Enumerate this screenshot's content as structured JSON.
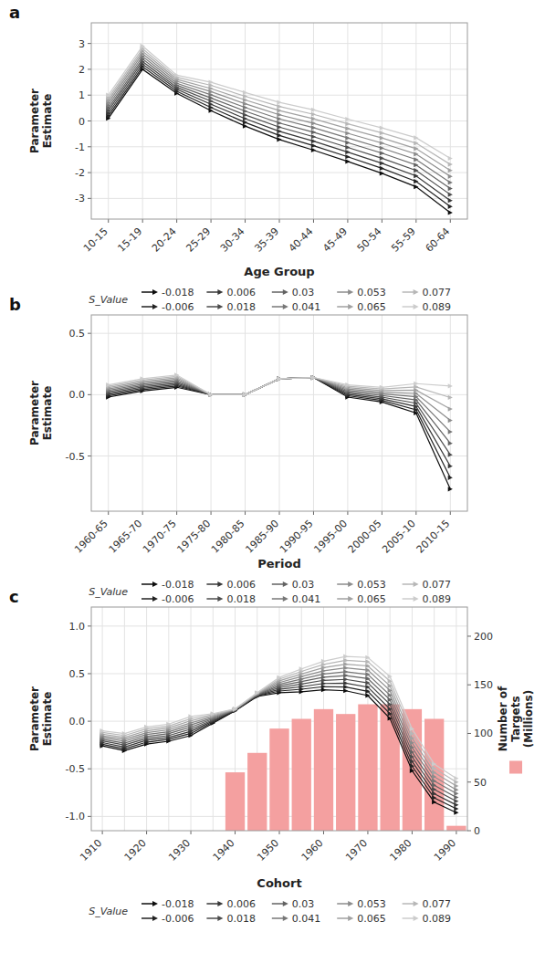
{
  "chart_data": [
    {
      "type": "line",
      "title": "a",
      "xlabel": "Age Group",
      "ylabel": "Parameter\nEstimate",
      "categories": [
        "10-15",
        "15-19",
        "20-24",
        "25-29",
        "30-34",
        "35-39",
        "40-44",
        "45-49",
        "50-54",
        "55-59",
        "60-64"
      ],
      "ylim": [
        -3.8,
        3.8
      ],
      "yticks": [
        -3,
        -2,
        -1,
        0,
        1,
        2,
        3
      ],
      "grid": true,
      "legend": "bottom",
      "legend_title": "S_Value",
      "series": [
        {
          "name": "-0.018",
          "color": "#0d0d0d",
          "marker": "triangle-right",
          "values": [
            0.1,
            2,
            1.07,
            0.4,
            -0.2,
            -0.72,
            -1.13,
            -1.57,
            -2.03,
            -2.55,
            -3.55
          ]
        },
        {
          "name": "-0.006",
          "color": "#222222",
          "marker": "triangle-right",
          "values": [
            0.2,
            2.1,
            1.1478,
            0.5222,
            -0.0556,
            -0.56,
            -0.9567,
            -1.3878,
            -1.8344,
            -2.3389,
            -3.3167
          ]
        },
        {
          "name": "0.006",
          "color": "#373737",
          "marker": "triangle-right",
          "values": [
            0.3,
            2.2,
            1.2256,
            0.6444,
            0.0889,
            -0.4,
            -0.7833,
            -1.2056,
            -1.6389,
            -2.1278,
            -3.0833
          ]
        },
        {
          "name": "0.018",
          "color": "#4c4c4c",
          "marker": "triangle-right",
          "values": [
            0.4,
            2.3,
            1.3033,
            0.7667,
            0.2333,
            -0.24,
            -0.61,
            -1.0233,
            -1.4433,
            -1.9167,
            -2.85
          ]
        },
        {
          "name": "0.03",
          "color": "#626262",
          "marker": "triangle-right",
          "values": [
            0.5,
            2.4,
            1.3811,
            0.8889,
            0.3778,
            -0.08,
            -0.4367,
            -0.8411,
            -1.2478,
            -1.7056,
            -2.6167
          ]
        },
        {
          "name": "0.041",
          "color": "#777777",
          "marker": "triangle-right",
          "values": [
            0.6,
            2.5,
            1.4589,
            1.0111,
            0.5222,
            0.08,
            -0.2633,
            -0.6589,
            -1.0522,
            -1.4944,
            -2.3833
          ]
        },
        {
          "name": "0.053",
          "color": "#8c8c8c",
          "marker": "triangle-right",
          "values": [
            0.7,
            2.6,
            1.5367,
            1.1333,
            0.6667,
            0.24,
            -0.09,
            -0.4767,
            -0.8567,
            -1.2833,
            -2.15
          ]
        },
        {
          "name": "0.065",
          "color": "#a1a1a1",
          "marker": "triangle-right",
          "values": [
            0.8,
            2.7,
            1.6144,
            1.2556,
            0.8111,
            0.4,
            0.0833,
            -0.2944,
            -0.6611,
            -1.0722,
            -1.9167
          ]
        },
        {
          "name": "0.077",
          "color": "#b7b7b7",
          "marker": "triangle-right",
          "values": [
            0.9,
            2.8,
            1.6922,
            1.3778,
            0.9556,
            0.56,
            0.2567,
            -0.1122,
            -0.4656,
            -0.8611,
            -1.6833
          ]
        },
        {
          "name": "0.089",
          "color": "#cccccc",
          "marker": "triangle-right",
          "values": [
            1,
            2.9,
            1.77,
            1.5,
            1.1,
            0.72,
            0.43,
            0.07,
            -0.27,
            -0.65,
            -1.45
          ]
        }
      ]
    },
    {
      "type": "line",
      "title": "b",
      "xlabel": "Period",
      "ylabel": "Parameter\nEstimate",
      "categories": [
        "1960-65",
        "1965-70",
        "1970-75",
        "1975-80",
        "1980-85",
        "1985-90",
        "1990-95",
        "1995-00",
        "2000-05",
        "2005-10",
        "2010-15"
      ],
      "ylim": [
        -0.95,
        0.65
      ],
      "yticks": [
        -0.5,
        {
          "value": 0,
          "label": "0.0"
        },
        0.5
      ],
      "grid": true,
      "legend": "bottom",
      "legend_title": "S_Value",
      "series": [
        {
          "name": "-0.018",
          "color": "#0d0d0d",
          "marker": "triangle-right",
          "values": [
            -0.02,
            0.03,
            0.06,
            0,
            0,
            0.13,
            0.14,
            -0.02,
            -0.06,
            -0.15,
            -0.77
          ]
        },
        {
          "name": "-0.006",
          "color": "#222222",
          "marker": "triangle-right",
          "values": [
            -0.0089,
            0.0411,
            0.0711,
            0,
            0,
            0.13,
            0.14,
            -0.0089,
            -0.0467,
            -0.1233,
            -0.6767
          ]
        },
        {
          "name": "0.006",
          "color": "#373737",
          "marker": "triangle-right",
          "values": [
            0.0022,
            0.0522,
            0.0822,
            0,
            0,
            0.13,
            0.14,
            0.0022,
            -0.0333,
            -0.0967,
            -0.5833
          ]
        },
        {
          "name": "0.018",
          "color": "#4c4c4c",
          "marker": "triangle-right",
          "values": [
            0.0133,
            0.0633,
            0.0933,
            0,
            0,
            0.13,
            0.14,
            0.0133,
            -0.02,
            -0.07,
            -0.49
          ]
        },
        {
          "name": "0.03",
          "color": "#626262",
          "marker": "triangle-right",
          "values": [
            0.0244,
            0.0744,
            0.1044,
            0,
            0,
            0.13,
            0.14,
            0.0244,
            -0.0067,
            -0.0433,
            -0.3967
          ]
        },
        {
          "name": "0.041",
          "color": "#777777",
          "marker": "triangle-right",
          "values": [
            0.0356,
            0.0856,
            0.1156,
            0,
            0,
            0.13,
            0.14,
            0.0356,
            0.0067,
            -0.0167,
            -0.3033
          ]
        },
        {
          "name": "0.053",
          "color": "#8c8c8c",
          "marker": "triangle-right",
          "values": [
            0.0467,
            0.0967,
            0.1267,
            0,
            0,
            0.13,
            0.14,
            0.0467,
            0.02,
            0.01,
            -0.21
          ]
        },
        {
          "name": "0.065",
          "color": "#a1a1a1",
          "marker": "triangle-right",
          "values": [
            0.0578,
            0.1078,
            0.1378,
            0,
            0,
            0.13,
            0.14,
            0.0578,
            0.0333,
            0.0367,
            -0.1167
          ]
        },
        {
          "name": "0.077",
          "color": "#b7b7b7",
          "marker": "triangle-right",
          "values": [
            0.0689,
            0.1189,
            0.1489,
            0,
            0,
            0.13,
            0.14,
            0.0689,
            0.0467,
            0.0633,
            -0.0233
          ]
        },
        {
          "name": "0.089",
          "color": "#cccccc",
          "marker": "triangle-right",
          "values": [
            0.08,
            0.13,
            0.16,
            0,
            0,
            0.13,
            0.14,
            0.08,
            0.06,
            0.09,
            0.07
          ]
        }
      ]
    },
    {
      "type": "line",
      "title": "c",
      "xlabel": "Cohort",
      "ylabel": "Parameter\nEstimate",
      "y2label": "Number of\nTargets\n(Millions)",
      "categories": [
        "1910",
        null,
        "1920",
        null,
        "1930",
        null,
        "1940",
        null,
        "1950",
        null,
        "1960",
        null,
        "1970",
        null,
        "1980",
        null,
        "1990"
      ],
      "ylim": [
        -1.15,
        1.2
      ],
      "yticks": [
        {
          "value": -1,
          "label": "-1.0"
        },
        -0.5,
        {
          "value": 0,
          "label": "0.0"
        },
        0.5,
        {
          "value": 1,
          "label": "1.0"
        }
      ],
      "y2lim": [
        0,
        230
      ],
      "y2ticks": [
        0,
        50,
        100,
        150,
        200
      ],
      "grid": true,
      "legend": "bottom",
      "legend_title": "S_Value",
      "series": [
        {
          "type": "bar",
          "axis": "y2",
          "color": "#f4a0a0",
          "values": [
            null,
            null,
            null,
            null,
            null,
            null,
            60,
            80,
            105,
            115,
            125,
            120,
            130,
            130,
            125,
            115,
            5
          ]
        },
        {
          "name": "-0.018",
          "color": "#0d0d0d",
          "marker": "triangle-right",
          "values": [
            -0.26,
            -0.31,
            -0.24,
            -0.21,
            -0.15,
            -0.02,
            0.11,
            0.26,
            0.3,
            0.31,
            0.33,
            0.32,
            0.27,
            0.03,
            -0.52,
            -0.85,
            -0.96
          ]
        },
        {
          "name": "-0.006",
          "color": "#222222",
          "marker": "triangle-right",
          "values": [
            -0.2422,
            -0.29,
            -0.22,
            -0.19,
            -0.1278,
            -0.0089,
            0.1122,
            0.2644,
            0.3178,
            0.3367,
            0.3633,
            0.36,
            0.3144,
            0.0789,
            -0.4711,
            -0.8056,
            -0.92
          ]
        },
        {
          "name": "0.006",
          "color": "#373737",
          "marker": "triangle-right",
          "values": [
            -0.2244,
            -0.27,
            -0.2,
            -0.17,
            -0.1056,
            0.0022,
            0.1144,
            0.2689,
            0.3356,
            0.3633,
            0.3967,
            0.4,
            0.3589,
            0.1278,
            -0.4222,
            -0.7611,
            -0.88
          ]
        },
        {
          "name": "0.018",
          "color": "#4c4c4c",
          "marker": "triangle-right",
          "values": [
            -0.2067,
            -0.25,
            -0.18,
            -0.15,
            -0.0833,
            0.0133,
            0.1167,
            0.2733,
            0.3533,
            0.39,
            0.43,
            0.44,
            0.4033,
            0.1767,
            -0.3733,
            -0.7167,
            -0.84
          ]
        },
        {
          "name": "0.03",
          "color": "#626262",
          "marker": "triangle-right",
          "values": [
            -0.1889,
            -0.23,
            -0.16,
            -0.13,
            -0.0611,
            0.0244,
            0.1189,
            0.2778,
            0.3711,
            0.4167,
            0.4633,
            0.48,
            0.4478,
            0.2256,
            -0.3244,
            -0.6722,
            -0.8
          ]
        },
        {
          "name": "0.041",
          "color": "#777777",
          "marker": "triangle-right",
          "values": [
            -0.1711,
            -0.21,
            -0.14,
            -0.11,
            -0.0389,
            0.0356,
            0.1211,
            0.2822,
            0.3889,
            0.4433,
            0.4967,
            0.52,
            0.4922,
            0.2744,
            -0.2756,
            -0.6278,
            -0.76
          ]
        },
        {
          "name": "0.053",
          "color": "#8c8c8c",
          "marker": "triangle-right",
          "values": [
            -0.1533,
            -0.19,
            -0.12,
            -0.09,
            -0.0167,
            0.0467,
            0.1233,
            0.2867,
            0.4067,
            0.47,
            0.53,
            0.56,
            0.5367,
            0.3233,
            -0.2267,
            -0.5833,
            -0.72
          ]
        },
        {
          "name": "0.065",
          "color": "#a1a1a1",
          "marker": "triangle-right",
          "values": [
            -0.1356,
            -0.17,
            -0.1,
            -0.07,
            0.0056,
            0.0578,
            0.1256,
            0.2911,
            0.4244,
            0.4967,
            0.5633,
            0.6,
            0.5811,
            0.3722,
            -0.1778,
            -0.5389,
            -0.68
          ]
        },
        {
          "name": "0.077",
          "color": "#b7b7b7",
          "marker": "triangle-right",
          "values": [
            -0.1178,
            -0.15,
            -0.08,
            -0.05,
            0.0278,
            0.0689,
            0.1278,
            0.2956,
            0.4422,
            0.5233,
            0.5967,
            0.64,
            0.6256,
            0.4211,
            -0.1289,
            -0.4944,
            -0.64
          ]
        },
        {
          "name": "0.089",
          "color": "#cccccc",
          "marker": "triangle-right",
          "values": [
            -0.1,
            -0.13,
            -0.06,
            -0.03,
            0.05,
            0.08,
            0.13,
            0.3,
            0.46,
            0.55,
            0.63,
            0.68,
            0.67,
            0.47,
            -0.08,
            -0.45,
            -0.6
          ]
        }
      ]
    }
  ]
}
